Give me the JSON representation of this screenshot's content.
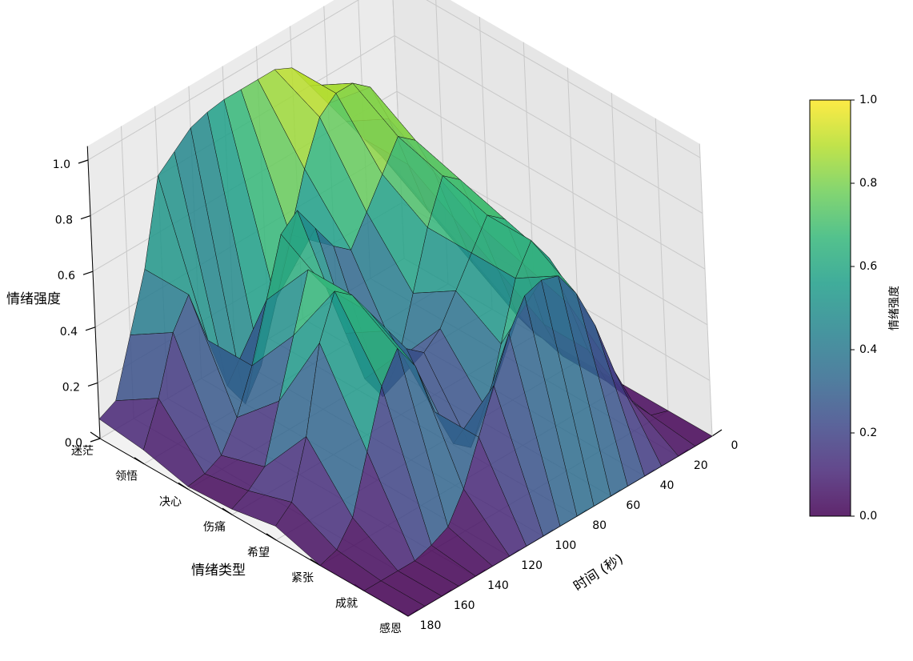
{
  "chart_data": {
    "type": "surface",
    "x": [
      0,
      10,
      20,
      30,
      40,
      50,
      60,
      70,
      80,
      90,
      100,
      110,
      120,
      130,
      140,
      150,
      160,
      170,
      180
    ],
    "xlim": [
      0,
      180
    ],
    "xticks": [
      0,
      20,
      40,
      60,
      80,
      100,
      120,
      140,
      160,
      180
    ],
    "xlabel": "时间 (秒)",
    "ylabel": "情绪类型",
    "zlabel": "情绪强度",
    "zlim": [
      0,
      1
    ],
    "zticks": [
      {
        "value": 0,
        "label": "0.0"
      },
      {
        "value": 0.2,
        "label": "0.2"
      },
      {
        "value": 0.4,
        "label": "0.4"
      },
      {
        "value": 0.6,
        "label": "0.6"
      },
      {
        "value": 0.8,
        "label": "0.8"
      },
      {
        "value": 1,
        "label": "1.0"
      }
    ],
    "colormap": "viridis",
    "grid": true,
    "series": [
      {
        "name": "迷茫",
        "values": [
          0.3,
          0.4,
          0.5,
          0.6,
          0.7,
          0.8,
          0.9,
          0.93,
          0.93,
          0.93,
          0.93,
          0.92,
          0.9,
          0.85,
          0.8,
          0.5,
          0.3,
          0.1,
          0.07
        ]
      },
      {
        "name": "领悟",
        "values": [
          0.2,
          0.3,
          0.5,
          0.7,
          0.85,
          0.9,
          0.9,
          0.85,
          0.7,
          0.5,
          0.3,
          0.1,
          0,
          0.1,
          0.3,
          0.5,
          0.4,
          0.2,
          0.05
        ]
      },
      {
        "name": "决心",
        "values": [
          0.1,
          0.2,
          0.4,
          0.6,
          0.75,
          0.8,
          0.7,
          0.6,
          0.5,
          0.55,
          0.65,
          0.75,
          0.7,
          0.5,
          0.3,
          0.15,
          0.05,
          0.02,
          0.01
        ]
      },
      {
        "name": "伤痛",
        "values": [
          0,
          0.1,
          0.3,
          0.5,
          0.7,
          0.75,
          0.6,
          0.4,
          0.2,
          0.1,
          0.2,
          0.4,
          0.6,
          0.7,
          0.5,
          0.3,
          0.1,
          0.05,
          0.02
        ]
      },
      {
        "name": "希望",
        "values": [
          0,
          0.05,
          0.2,
          0.45,
          0.65,
          0.7,
          0.6,
          0.5,
          0.4,
          0.35,
          0.4,
          0.5,
          0.6,
          0.7,
          0.75,
          0.6,
          0.3,
          0.1,
          0.05
        ]
      },
      {
        "name": "紧张",
        "values": [
          0,
          0.05,
          0.2,
          0.4,
          0.6,
          0.7,
          0.6,
          0.4,
          0.2,
          0.1,
          0.15,
          0.3,
          0.5,
          0.6,
          0.5,
          0.3,
          0.1,
          0.02,
          0
        ]
      },
      {
        "name": "成就",
        "values": [
          0,
          0.02,
          0.1,
          0.25,
          0.45,
          0.6,
          0.7,
          0.72,
          0.7,
          0.6,
          0.45,
          0.3,
          0.15,
          0.05,
          0.02,
          0,
          0,
          0,
          0
        ]
      },
      {
        "name": "感恩",
        "values": [
          0,
          0,
          0,
          0,
          0,
          0,
          0,
          0,
          0,
          0,
          0,
          0,
          0,
          0,
          0,
          0,
          0,
          0,
          0
        ]
      }
    ],
    "colorbar": {
      "label": "情绪强度",
      "ticks": [
        {
          "value": 0,
          "label": "0.0"
        },
        {
          "value": 0.2,
          "label": "0.2"
        },
        {
          "value": 0.4,
          "label": "0.4"
        },
        {
          "value": 0.6,
          "label": "0.6"
        },
        {
          "value": 0.8,
          "label": "0.8"
        },
        {
          "value": 1,
          "label": "1.0"
        }
      ]
    }
  }
}
